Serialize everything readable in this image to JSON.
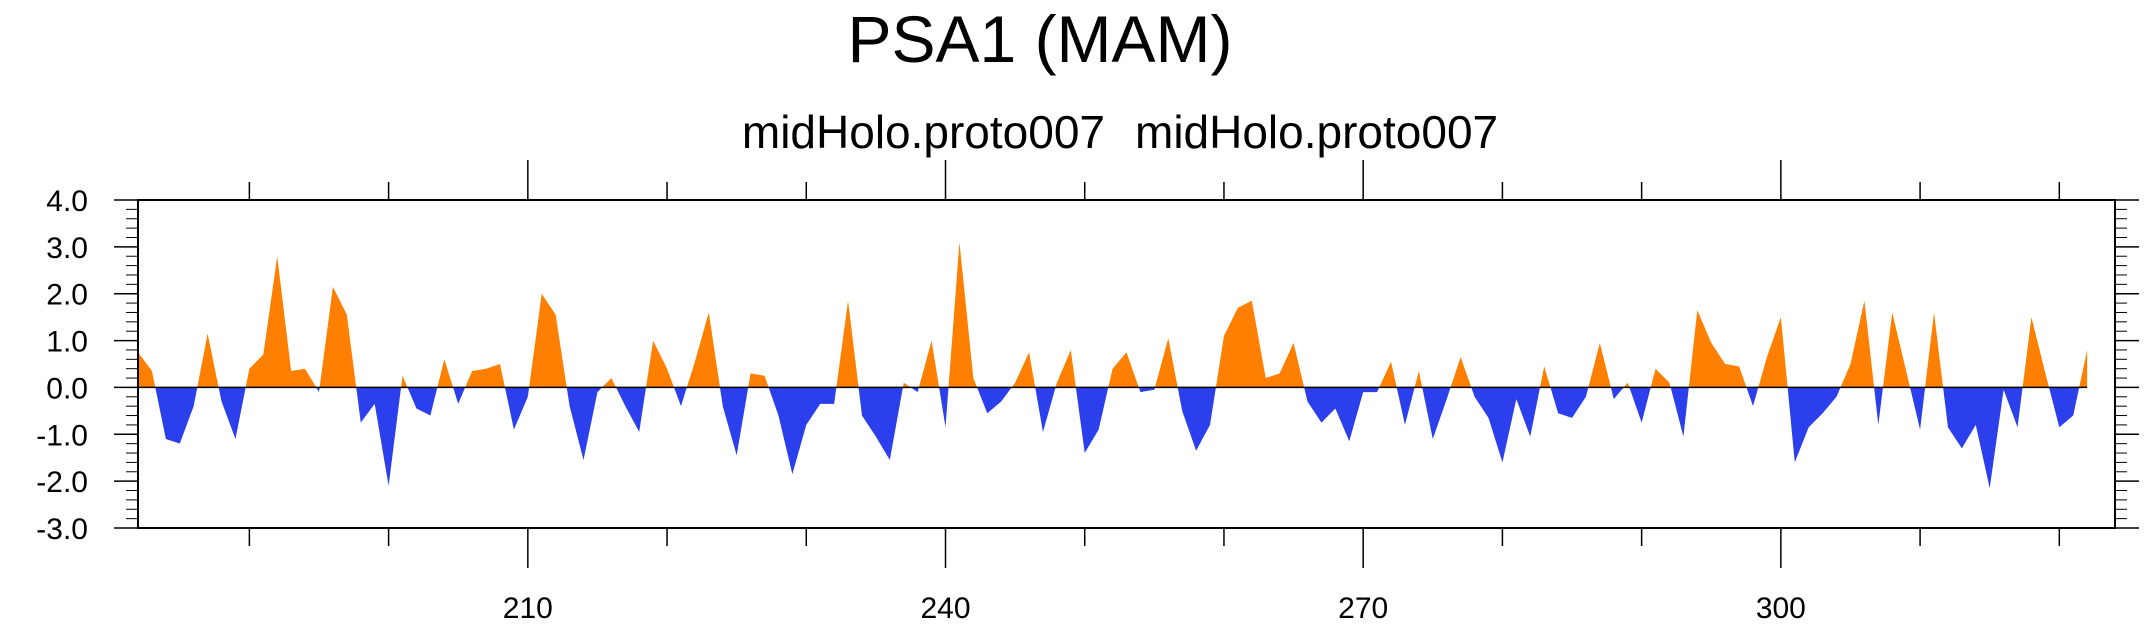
{
  "chart_data": {
    "type": "area",
    "title": "PSA1 (MAM)",
    "subtitle_left": "midHolo.proto007",
    "subtitle_right": "midHolo.proto007",
    "xlabel": "",
    "ylabel": "",
    "xlim": [
      182,
      324
    ],
    "ylim": [
      -3.0,
      4.0
    ],
    "x_ticks": [
      210,
      240,
      270,
      300
    ],
    "x_tick_labels": [
      "210",
      "240",
      "270",
      "300"
    ],
    "y_ticks": [
      -3.0,
      -2.0,
      -1.0,
      0.0,
      1.0,
      2.0,
      3.0,
      4.0
    ],
    "y_tick_labels": [
      "-3.0",
      "-2.0",
      "-1.0",
      "0.0",
      "1.0",
      "2.0",
      "3.0",
      "4.0"
    ],
    "fill_above_zero": "#ff8000",
    "fill_below_zero": "#2b40ec",
    "grid": false,
    "x_start": 182,
    "x_step": 1,
    "values": [
      0.75,
      0.35,
      -1.1,
      -1.2,
      -0.4,
      1.15,
      -0.3,
      -1.1,
      0.4,
      0.7,
      2.8,
      0.35,
      0.4,
      -0.1,
      2.15,
      1.55,
      -0.75,
      -0.35,
      -2.1,
      0.25,
      -0.45,
      -0.6,
      0.6,
      -0.35,
      0.35,
      0.4,
      0.5,
      -0.9,
      -0.2,
      2.0,
      1.55,
      -0.4,
      -1.55,
      -0.1,
      0.2,
      -0.4,
      -0.95,
      1.0,
      0.4,
      -0.4,
      0.55,
      1.6,
      -0.4,
      -1.45,
      0.3,
      0.25,
      -0.6,
      -1.85,
      -0.8,
      -0.35,
      -0.35,
      1.85,
      -0.6,
      -1.05,
      -1.55,
      0.1,
      -0.1,
      1.0,
      -0.85,
      3.1,
      0.2,
      -0.55,
      -0.3,
      0.1,
      0.75,
      -0.95,
      0.1,
      0.8,
      -1.4,
      -0.9,
      0.4,
      0.75,
      -0.1,
      -0.05,
      1.05,
      -0.5,
      -1.35,
      -0.8,
      1.1,
      1.7,
      1.85,
      0.2,
      0.3,
      0.95,
      -0.3,
      -0.75,
      -0.45,
      -1.15,
      -0.1,
      -0.1,
      0.55,
      -0.8,
      0.35,
      -1.1,
      -0.25,
      0.65,
      -0.2,
      -0.65,
      -1.6,
      -0.25,
      -1.05,
      0.45,
      -0.55,
      -0.65,
      -0.2,
      0.95,
      -0.25,
      0.1,
      -0.75,
      0.4,
      0.1,
      -1.05,
      1.65,
      0.95,
      0.5,
      0.45,
      -0.4,
      0.65,
      1.5,
      -1.6,
      -0.85,
      -0.55,
      -0.2,
      0.5,
      1.85,
      -0.8,
      1.6,
      0.35,
      -0.9,
      1.6,
      -0.85,
      -1.3,
      -0.8,
      -2.15,
      -0.05,
      -0.85,
      1.5,
      0.3,
      -0.85,
      -0.6,
      0.8
    ]
  }
}
